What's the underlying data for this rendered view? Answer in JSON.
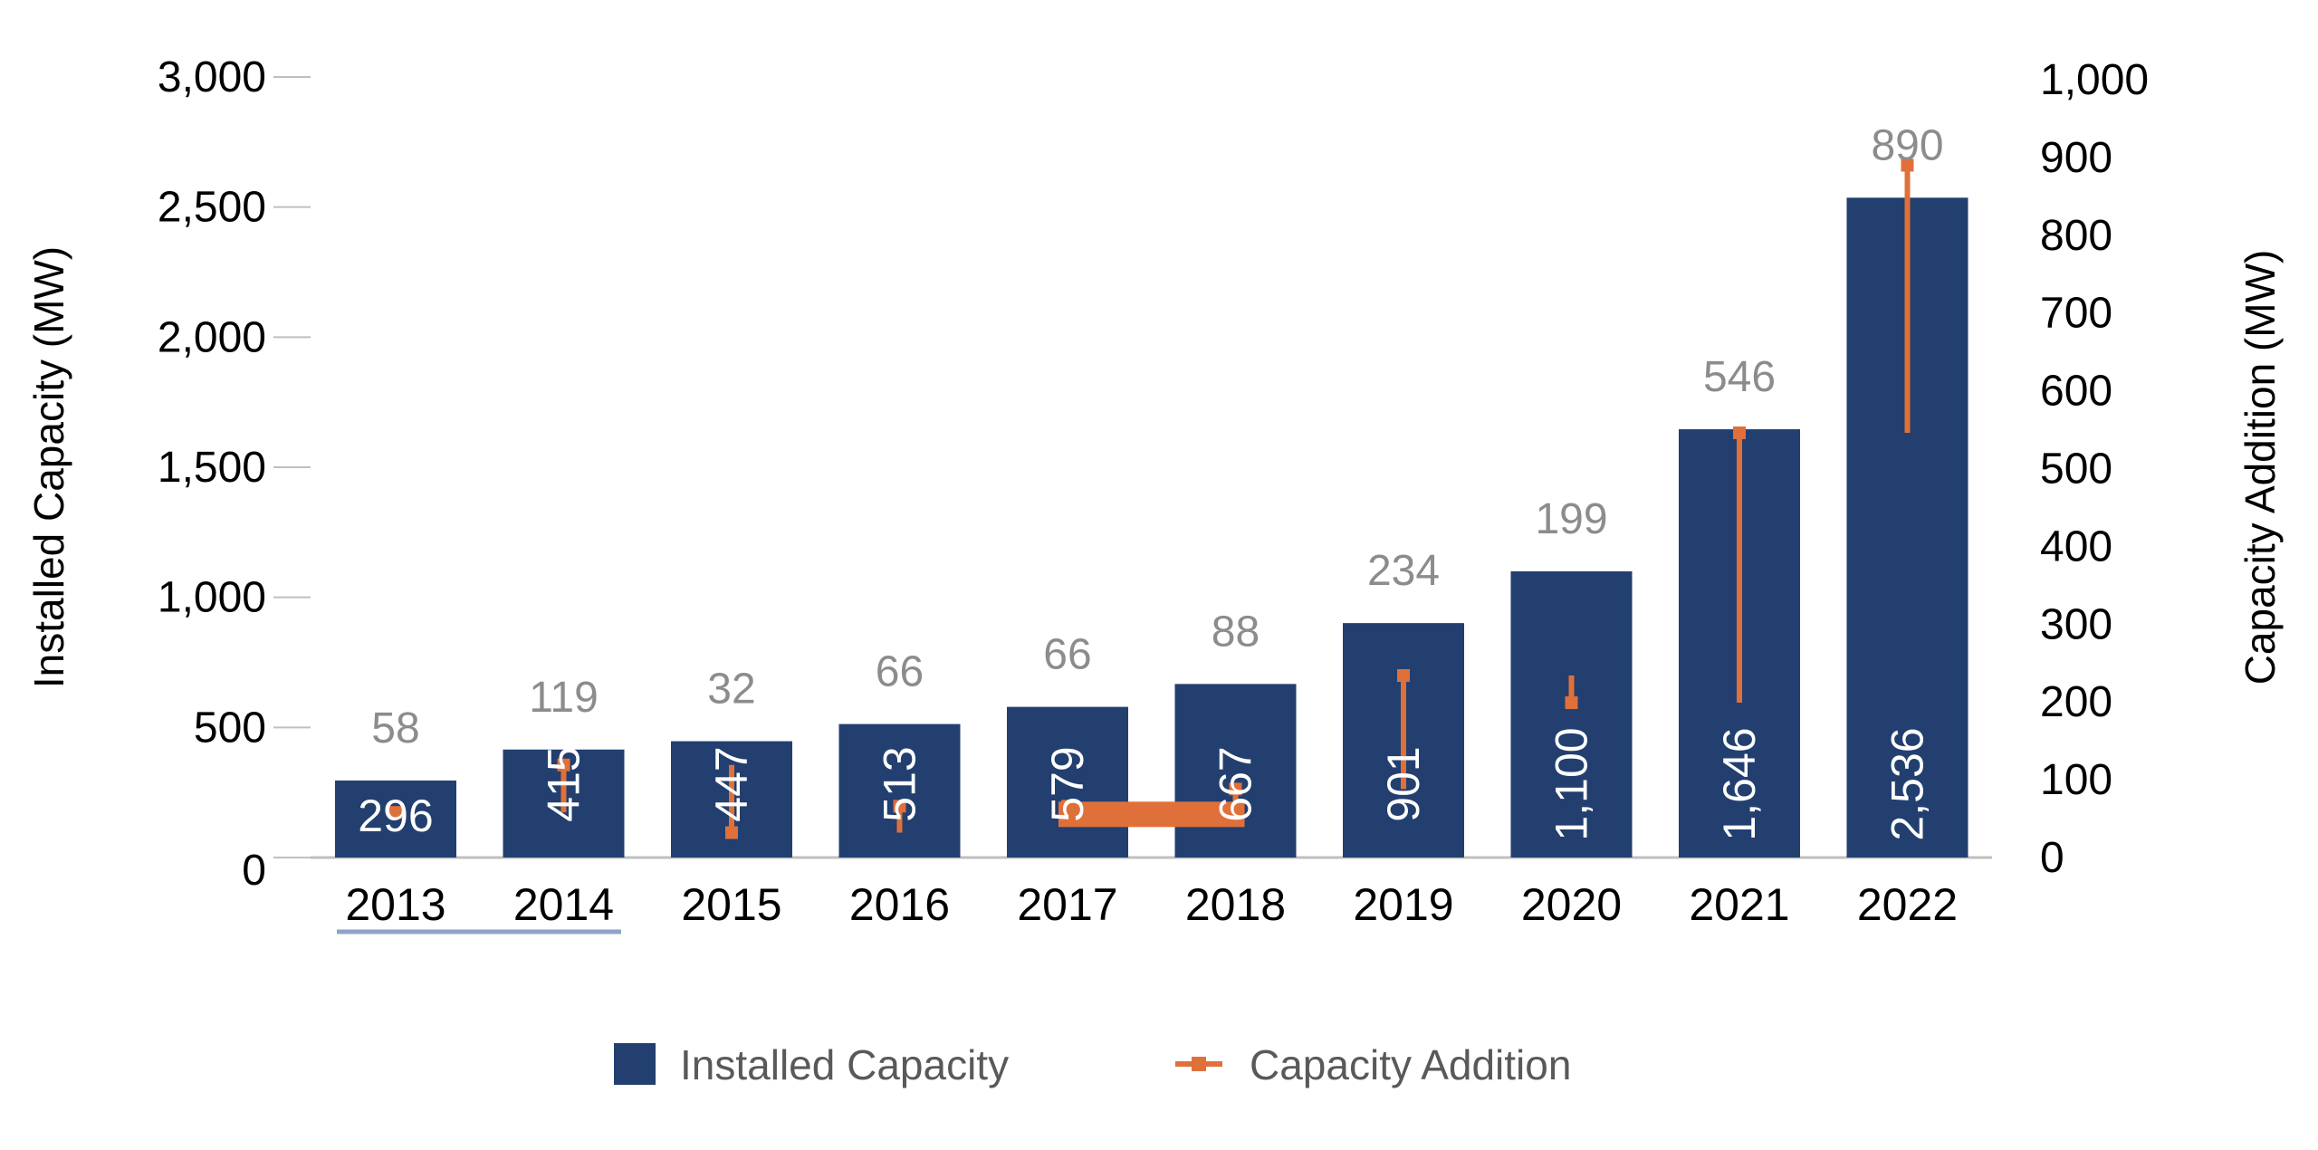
{
  "chart_data": {
    "type": "bar",
    "categories": [
      "2013",
      "2014",
      "2015",
      "2016",
      "2017",
      "2018",
      "2019",
      "2020",
      "2021",
      "2022"
    ],
    "series": [
      {
        "name": "Installed Capacity",
        "type": "bar",
        "axis": "left",
        "color": "#223f70",
        "values": [
          296,
          415,
          447,
          513,
          579,
          667,
          901,
          1100,
          1646,
          2536
        ],
        "labels": [
          "296",
          "415",
          "447",
          "513",
          "579",
          "667",
          "901",
          "1,100",
          "1,646",
          "2,536"
        ]
      },
      {
        "name": "Capacity Addition",
        "type": "line",
        "axis": "right",
        "color": "#e0703a",
        "values": [
          58,
          119,
          32,
          66,
          66,
          88,
          234,
          199,
          546,
          890
        ],
        "labels": [
          "58",
          "119",
          "32",
          "66",
          "66",
          "88",
          "234",
          "199",
          "546",
          "890"
        ]
      }
    ],
    "ylabel": "Installed Capacity  (MW)",
    "y2label": "Capacity Addition  (MW)",
    "ylim": [
      0,
      3000
    ],
    "y2lim": [
      0,
      1000
    ],
    "yticks": [
      "0",
      "500",
      "1,000",
      "1,500",
      "2,000",
      "2,500",
      "3,000"
    ],
    "y2ticks": [
      "0",
      "100",
      "200",
      "300",
      "400",
      "500",
      "600",
      "700",
      "800",
      "900",
      "1,000"
    ],
    "legend_position": "bottom",
    "grid": false,
    "data_label_color": "#8c8c8c"
  }
}
